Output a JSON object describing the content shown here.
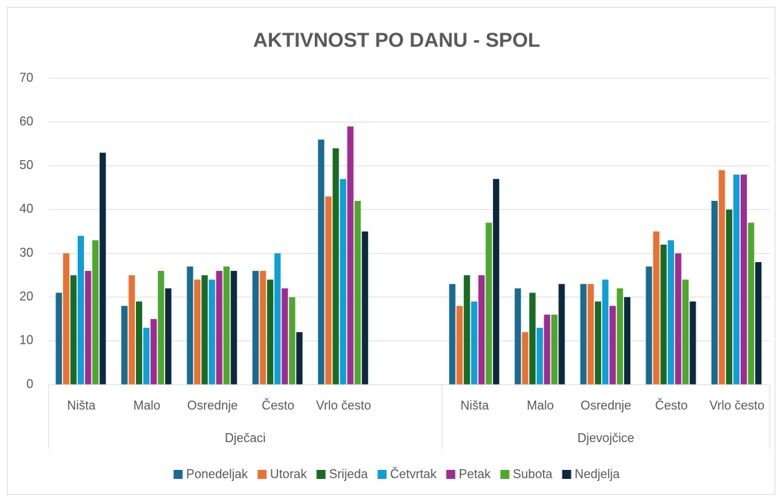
{
  "chart_data": {
    "type": "bar",
    "title": "AKTIVNOST PO DANU - SPOL",
    "categories": [
      "Ništa",
      "Malo",
      "Osrednje",
      "Često",
      "Vrlo često",
      null,
      "Ništa",
      "Malo",
      "Osrednje",
      "Često",
      "Vrlo često"
    ],
    "groups": [
      "Dječaci",
      "Djevojčice"
    ],
    "series": [
      {
        "name": "Ponedeljak",
        "color": "#196b8f",
        "values": [
          21,
          18,
          27,
          26,
          56,
          null,
          23,
          22,
          23,
          27,
          42
        ]
      },
      {
        "name": "Utorak",
        "color": "#e97132",
        "values": [
          30,
          25,
          24,
          26,
          43,
          null,
          18,
          12,
          23,
          35,
          49
        ]
      },
      {
        "name": "Srijeda",
        "color": "#196b24",
        "values": [
          25,
          19,
          25,
          24,
          54,
          null,
          25,
          21,
          19,
          32,
          40
        ]
      },
      {
        "name": "Četvrtak",
        "color": "#0f9ed5",
        "values": [
          34,
          13,
          24,
          30,
          47,
          null,
          19,
          13,
          24,
          33,
          48
        ]
      },
      {
        "name": "Petak",
        "color": "#a02b93",
        "values": [
          26,
          15,
          26,
          22,
          59,
          null,
          25,
          16,
          18,
          30,
          48
        ]
      },
      {
        "name": "Subota",
        "color": "#4ea72e",
        "values": [
          33,
          26,
          27,
          20,
          42,
          null,
          37,
          16,
          22,
          24,
          37
        ]
      },
      {
        "name": "Nedjelja",
        "color": "#0e2841",
        "values": [
          53,
          22,
          26,
          12,
          35,
          null,
          47,
          23,
          20,
          19,
          28
        ]
      }
    ],
    "ylim": [
      0,
      70
    ],
    "yticks": [
      0,
      10,
      20,
      30,
      40,
      50,
      60,
      70
    ],
    "grid": true,
    "legend": "bottom"
  }
}
